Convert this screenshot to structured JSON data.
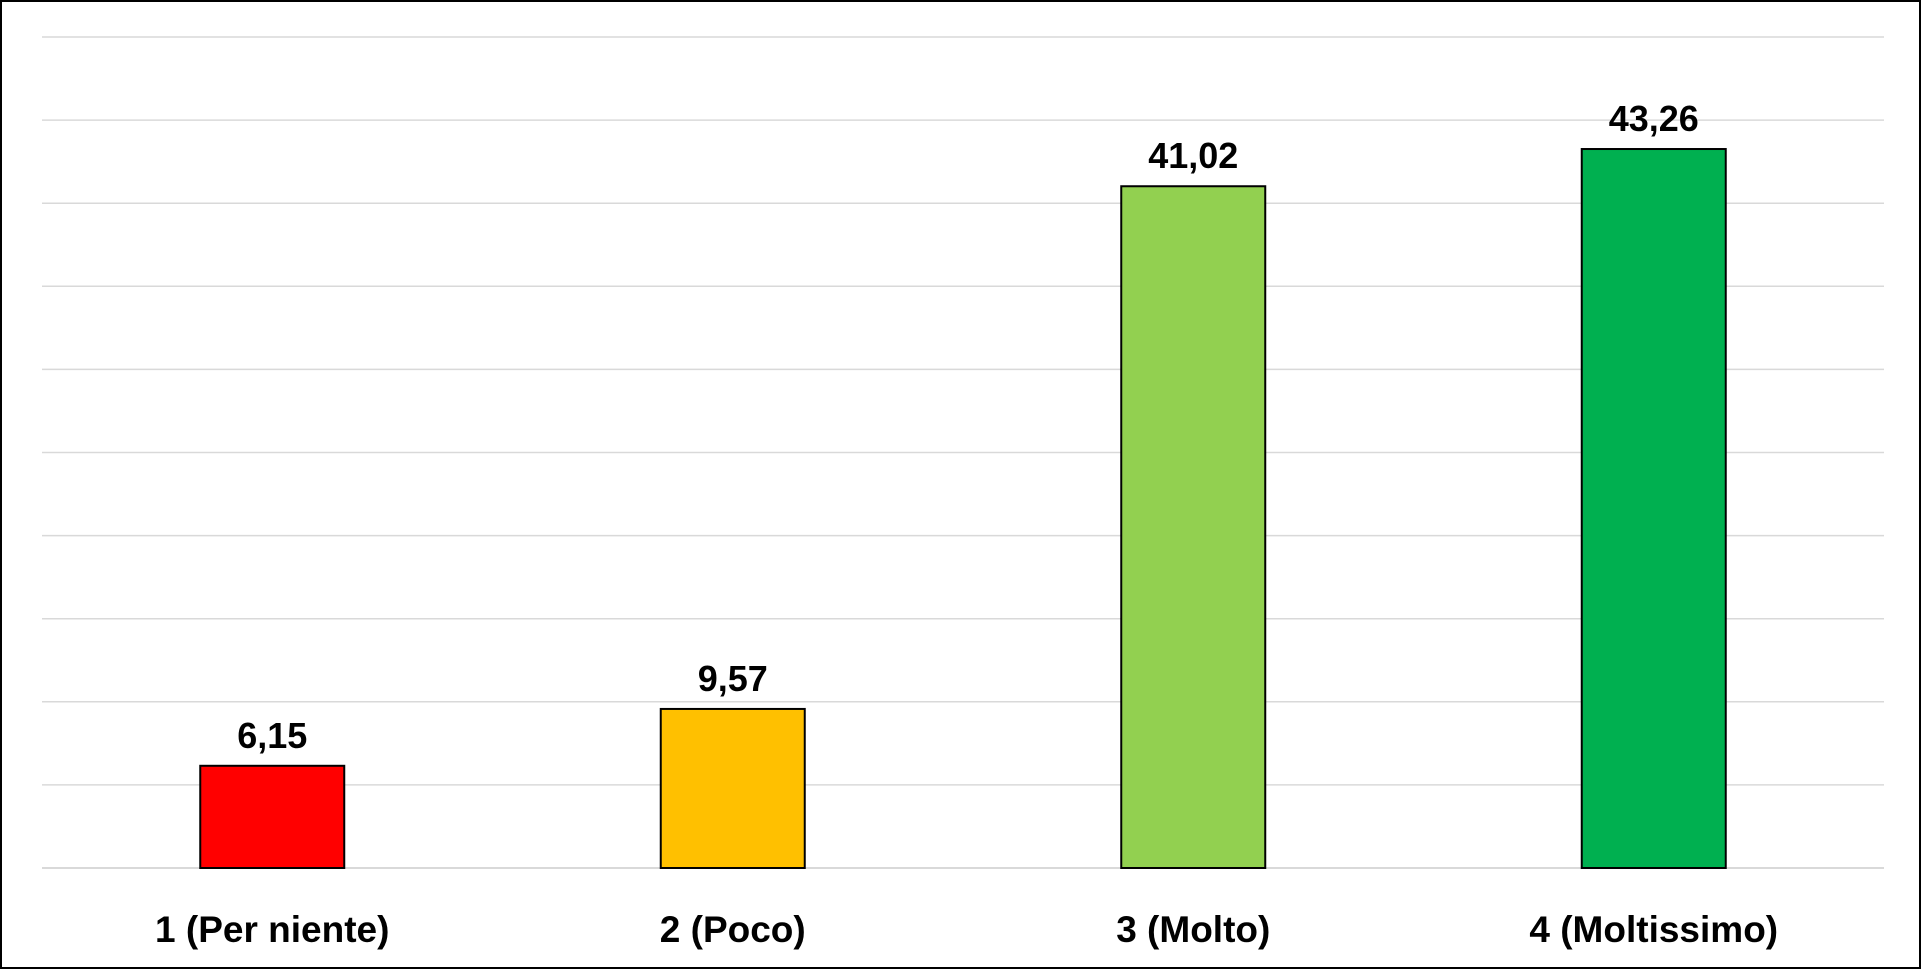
{
  "chart_data": {
    "type": "bar",
    "categories": [
      "1 (Per niente)",
      "2 (Poco)",
      "3 (Molto)",
      "4 (Moltissimo)"
    ],
    "values": [
      6.15,
      9.57,
      41.02,
      43.26
    ],
    "value_labels": [
      "6,15",
      "9,57",
      "41,02",
      "43,26"
    ],
    "colors": [
      "#ff0000",
      "#ffc000",
      "#92d050",
      "#00b050"
    ],
    "ylim": [
      0,
      50
    ],
    "grid": true,
    "gridline_step": 5,
    "legend": "none",
    "title": "",
    "xlabel": "",
    "ylabel": ""
  }
}
